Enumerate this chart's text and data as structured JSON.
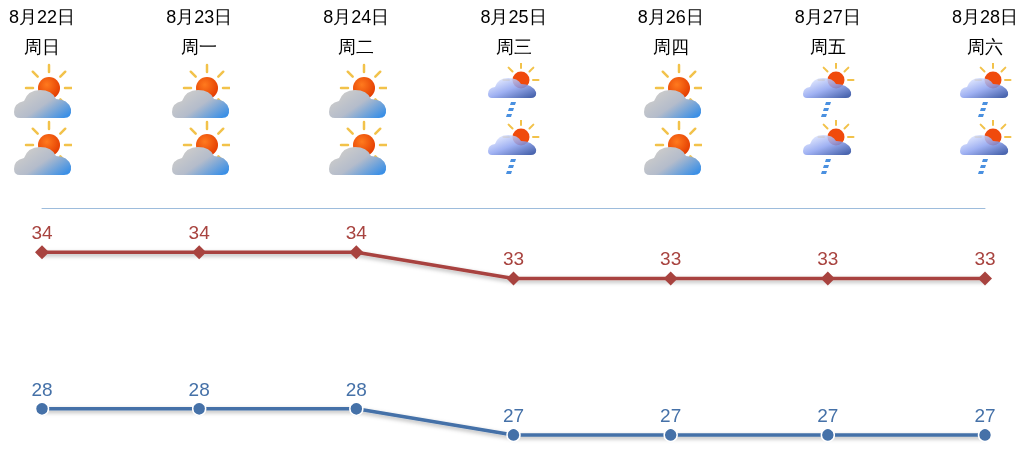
{
  "chart_data": {
    "type": "line",
    "categories": [
      "8月22日周日",
      "8月23日周一",
      "8月24日周二",
      "8月25日周三",
      "8月26日周四",
      "8月27日周五",
      "8月28日周六"
    ],
    "series": [
      {
        "color": "#a8433f",
        "marker": "diamond",
        "values": [
          34,
          34,
          34,
          33,
          33,
          33,
          33
        ]
      },
      {
        "color": "#4571a8",
        "marker": "circle",
        "values": [
          28,
          28,
          28,
          27,
          27,
          27,
          27
        ]
      }
    ],
    "data_labels": true,
    "tick_labels": "x",
    "line_style": "solid"
  }
}
